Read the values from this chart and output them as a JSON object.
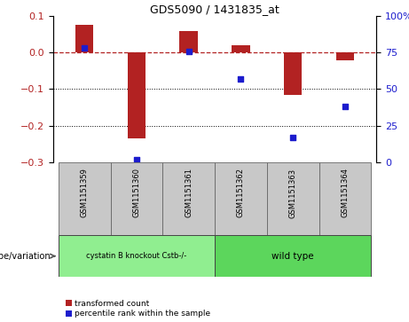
{
  "title": "GDS5090 / 1431835_at",
  "samples": [
    "GSM1151359",
    "GSM1151360",
    "GSM1151361",
    "GSM1151362",
    "GSM1151363",
    "GSM1151364"
  ],
  "red_values": [
    0.075,
    -0.235,
    0.06,
    0.02,
    -0.115,
    -0.02
  ],
  "blue_values": [
    78,
    2,
    76,
    57,
    17,
    38
  ],
  "group1_label": "cystatin B knockout Cstb-/-",
  "group2_label": "wild type",
  "group1_color": "#90EE90",
  "group2_color": "#5CD65C",
  "ylim_left": [
    -0.3,
    0.1
  ],
  "ylim_right": [
    0,
    100
  ],
  "yticks_left": [
    -0.3,
    -0.2,
    -0.1,
    0.0,
    0.1
  ],
  "yticks_right": [
    0,
    25,
    50,
    75,
    100
  ],
  "ytick_right_labels": [
    "0",
    "25",
    "50",
    "75",
    "100%"
  ],
  "red_color": "#B22222",
  "blue_color": "#1C1CCD",
  "gray_color": "#C8C8C8",
  "legend_red": "transformed count",
  "legend_blue": "percentile rank within the sample",
  "genotype_label": "genotype/variation",
  "bar_width": 0.35
}
